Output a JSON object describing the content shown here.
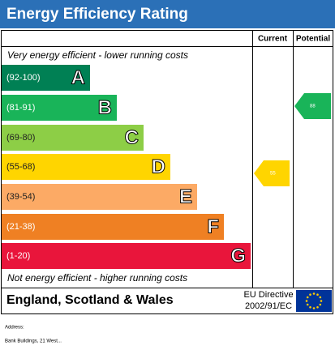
{
  "title": "Energy Efficiency Rating",
  "columns": {
    "current": "Current",
    "potential": "Potential"
  },
  "top_note": "Very energy efficient - lower running costs",
  "bottom_note": "Not energy efficient - higher running costs",
  "bands": [
    {
      "range": "(92-100)",
      "letter": "A",
      "color": "#008054"
    },
    {
      "range": "(81-91)",
      "letter": "B",
      "color": "#19b459"
    },
    {
      "range": "(69-80)",
      "letter": "C",
      "color": "#8dce46"
    },
    {
      "range": "(55-68)",
      "letter": "D",
      "color": "#ffd500"
    },
    {
      "range": "(39-54)",
      "letter": "E",
      "color": "#fcaa65"
    },
    {
      "range": "(21-38)",
      "letter": "F",
      "color": "#ef8023"
    },
    {
      "range": "(1-20)",
      "letter": "G",
      "color": "#e9153b"
    }
  ],
  "current": {
    "value": "55",
    "color": "#ffd500"
  },
  "potential": {
    "value": "88",
    "color": "#19b459"
  },
  "region": "England, Scotland & Wales",
  "directive": [
    "EU Directive",
    "2002/91/EC"
  ],
  "address": {
    "label": "Address:",
    "line": "Bank Buildings, 21 West..."
  }
}
